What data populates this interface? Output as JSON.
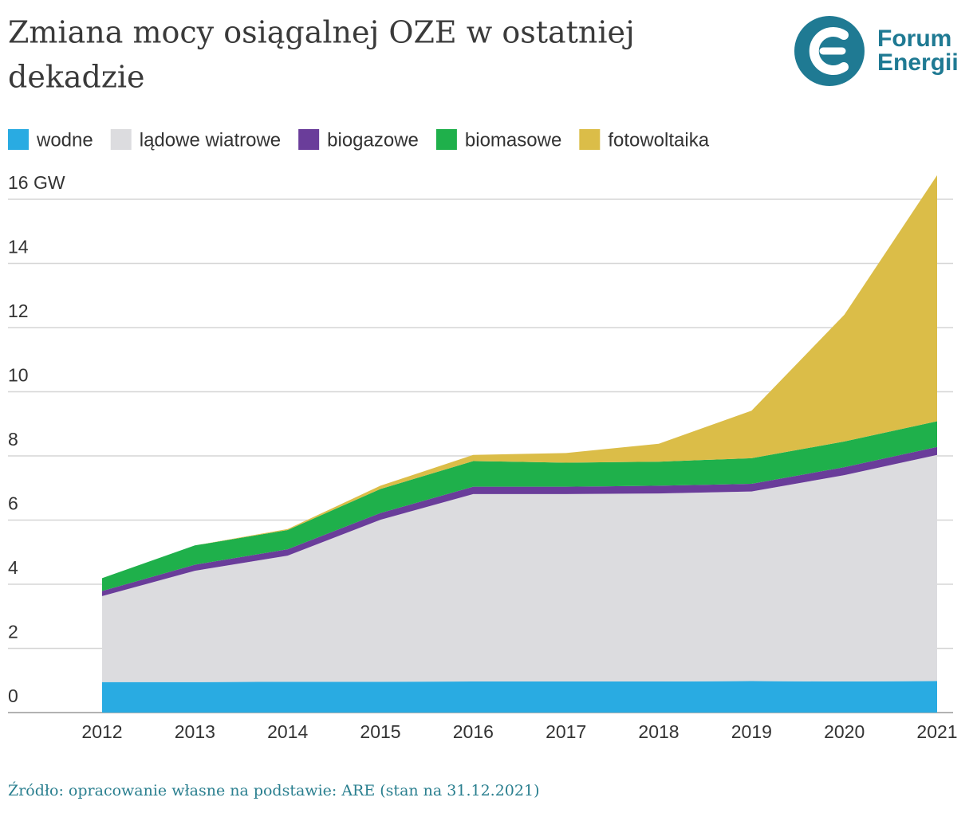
{
  "chart_data": {
    "type": "stacked_area",
    "title_lines": [
      "Zmiana mocy osiągalnej OZE w ostatniej",
      "dekadzie"
    ],
    "brand": [
      "Forum",
      "Energii"
    ],
    "source": "Źródło: opracowanie własne na podstawie: ARE (stan na 31.12.2021)",
    "categories": [
      "2012",
      "2013",
      "2014",
      "2015",
      "2016",
      "2017",
      "2018",
      "2019",
      "2020",
      "2021"
    ],
    "series": [
      {
        "name": "wodne",
        "color": "#29abe2",
        "values": [
          0.95,
          0.95,
          0.96,
          0.96,
          0.97,
          0.97,
          0.97,
          0.98,
          0.97,
          0.98
        ]
      },
      {
        "name": "lądowe wiatrowe",
        "color": "#dcdcdf",
        "values": [
          2.68,
          3.47,
          3.93,
          5.05,
          5.84,
          5.84,
          5.86,
          5.91,
          6.43,
          7.05
        ]
      },
      {
        "name": "biogazowe",
        "color": "#6a3d9a",
        "values": [
          0.16,
          0.19,
          0.2,
          0.21,
          0.23,
          0.23,
          0.24,
          0.24,
          0.25,
          0.25
        ]
      },
      {
        "name": "biomasowe",
        "color": "#1fb04b",
        "values": [
          0.4,
          0.6,
          0.6,
          0.75,
          0.8,
          0.75,
          0.75,
          0.8,
          0.8,
          0.8
        ]
      },
      {
        "name": "fotowoltaika",
        "color": "#dbbd48",
        "values": [
          0,
          0,
          0.03,
          0.1,
          0.19,
          0.3,
          0.56,
          1.48,
          3.95,
          7.67
        ]
      }
    ],
    "ylim": [
      0,
      16
    ],
    "yticks": [
      0,
      2,
      4,
      6,
      8,
      10,
      12,
      14,
      {
        "value": 16,
        "label": "16 GW"
      }
    ],
    "grid": true
  }
}
